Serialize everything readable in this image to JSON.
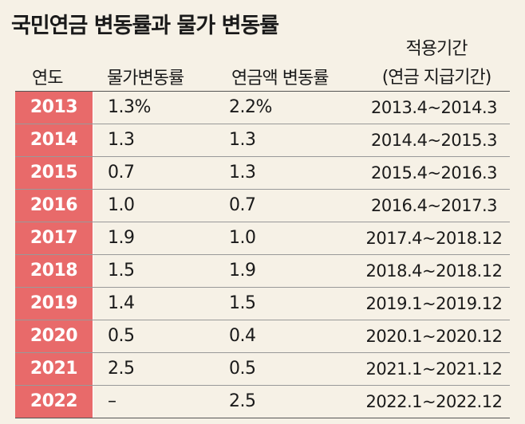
{
  "title": "국민연금 변동률과 물가 변동률",
  "headers": {
    "year": "연도",
    "price_change": "물가변동률",
    "pension_change": "연금액 변동률",
    "period_line1": "적용기간",
    "period_line2": "(연금 지급기간)"
  },
  "rows": [
    {
      "year": "2013",
      "price": "1.3%",
      "pension": "2.2%",
      "period": "2013.4~2014.3"
    },
    {
      "year": "2014",
      "price": "1.3",
      "pension": "1.3",
      "period": "2014.4~2015.3"
    },
    {
      "year": "2015",
      "price": "0.7",
      "pension": "1.3",
      "period": "2015.4~2016.3"
    },
    {
      "year": "2016",
      "price": "1.0",
      "pension": "0.7",
      "period": "2016.4~2017.3"
    },
    {
      "year": "2017",
      "price": "1.9",
      "pension": "1.0",
      "period": "2017.4~2018.12"
    },
    {
      "year": "2018",
      "price": "1.5",
      "pension": "1.9",
      "period": "2018.4~2018.12"
    },
    {
      "year": "2019",
      "price": "1.4",
      "pension": "1.5",
      "period": "2019.1~2019.12"
    },
    {
      "year": "2020",
      "price": "0.5",
      "pension": "0.4",
      "period": "2020.1~2020.12"
    },
    {
      "year": "2021",
      "price": "2.5",
      "pension": "0.5",
      "period": "2021.1~2021.12"
    },
    {
      "year": "2022",
      "price": "–",
      "pension": "2.5",
      "period": "2022.1~2022.12"
    }
  ],
  "colors": {
    "background": "#f6f1e6",
    "year_cell": "#e86a6a"
  }
}
